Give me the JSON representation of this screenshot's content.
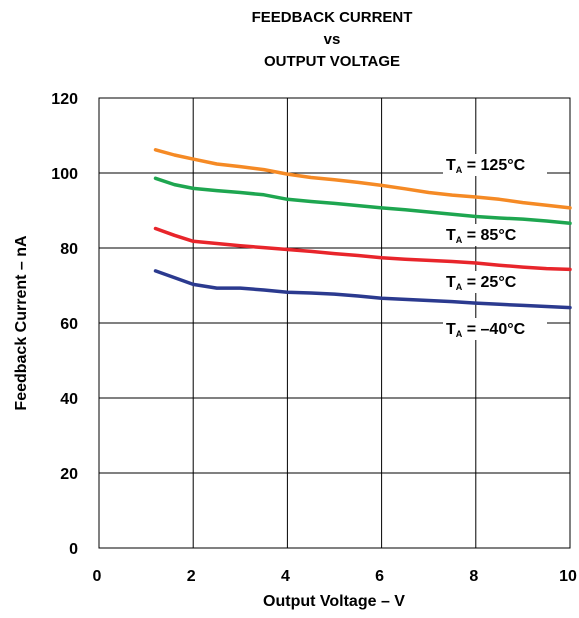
{
  "chart_data": {
    "type": "line",
    "title": [
      "FEEDBACK CURRENT",
      "vs",
      "OUTPUT VOLTAGE"
    ],
    "xlabel": "Output Voltage – V",
    "ylabel": "Feedback Current – nA",
    "xlim": [
      0,
      10
    ],
    "ylim": [
      0,
      120
    ],
    "xticks": [
      0,
      2,
      4,
      6,
      8,
      10
    ],
    "yticks": [
      0,
      20,
      40,
      60,
      80,
      100,
      120
    ],
    "grid": true,
    "series": [
      {
        "label_main": "T",
        "label_sub": "A",
        "label_rest": " = 125°C",
        "color": "#f58a25",
        "x": [
          1.2,
          1.6,
          2.0,
          2.5,
          3.0,
          3.5,
          4.0,
          4.5,
          5.0,
          5.5,
          6.0,
          6.5,
          7.0,
          7.5,
          8.0,
          8.5,
          9.0,
          9.5,
          10.0
        ],
        "y": [
          106.2,
          104.8,
          103.7,
          102.4,
          101.7,
          100.9,
          99.7,
          98.8,
          98.2,
          97.5,
          96.7,
          95.8,
          94.8,
          94.1,
          93.6,
          93.0,
          92.1,
          91.4,
          90.7
        ]
      },
      {
        "label_main": "T",
        "label_sub": "A",
        "label_rest": " = 85°C",
        "color": "#1ea650",
        "x": [
          1.2,
          1.6,
          2.0,
          2.5,
          3.0,
          3.5,
          4.0,
          4.5,
          5.0,
          5.5,
          6.0,
          6.5,
          7.0,
          7.5,
          8.0,
          8.5,
          9.0,
          9.5,
          10.0
        ],
        "y": [
          98.6,
          96.9,
          95.9,
          95.3,
          94.8,
          94.2,
          93.0,
          92.4,
          91.9,
          91.3,
          90.7,
          90.2,
          89.6,
          89.0,
          88.4,
          88.0,
          87.7,
          87.2,
          86.6
        ]
      },
      {
        "label_main": "T",
        "label_sub": "A",
        "label_rest": " = 25°C",
        "color": "#e8252b",
        "x": [
          1.2,
          1.6,
          2.0,
          2.5,
          3.0,
          3.5,
          4.0,
          4.5,
          5.0,
          5.5,
          6.0,
          6.5,
          7.0,
          7.5,
          8.0,
          8.5,
          9.0,
          9.5,
          10.0
        ],
        "y": [
          85.2,
          83.4,
          81.8,
          81.2,
          80.6,
          80.1,
          79.6,
          79.1,
          78.5,
          78.0,
          77.4,
          77.0,
          76.7,
          76.4,
          76.0,
          75.4,
          74.9,
          74.5,
          74.3
        ]
      },
      {
        "label_main": "T",
        "label_sub": "A",
        "label_rest": " = –40°C",
        "color": "#2b3a8f",
        "x": [
          1.2,
          1.6,
          2.0,
          2.5,
          3.0,
          3.5,
          4.0,
          4.5,
          5.0,
          5.5,
          6.0,
          6.5,
          7.0,
          7.5,
          8.0,
          8.5,
          9.0,
          9.5,
          10.0
        ],
        "y": [
          73.9,
          72.1,
          70.3,
          69.3,
          69.3,
          68.8,
          68.2,
          68.0,
          67.7,
          67.2,
          66.6,
          66.3,
          66.0,
          65.7,
          65.3,
          65.0,
          64.7,
          64.4,
          64.1
        ]
      }
    ]
  }
}
